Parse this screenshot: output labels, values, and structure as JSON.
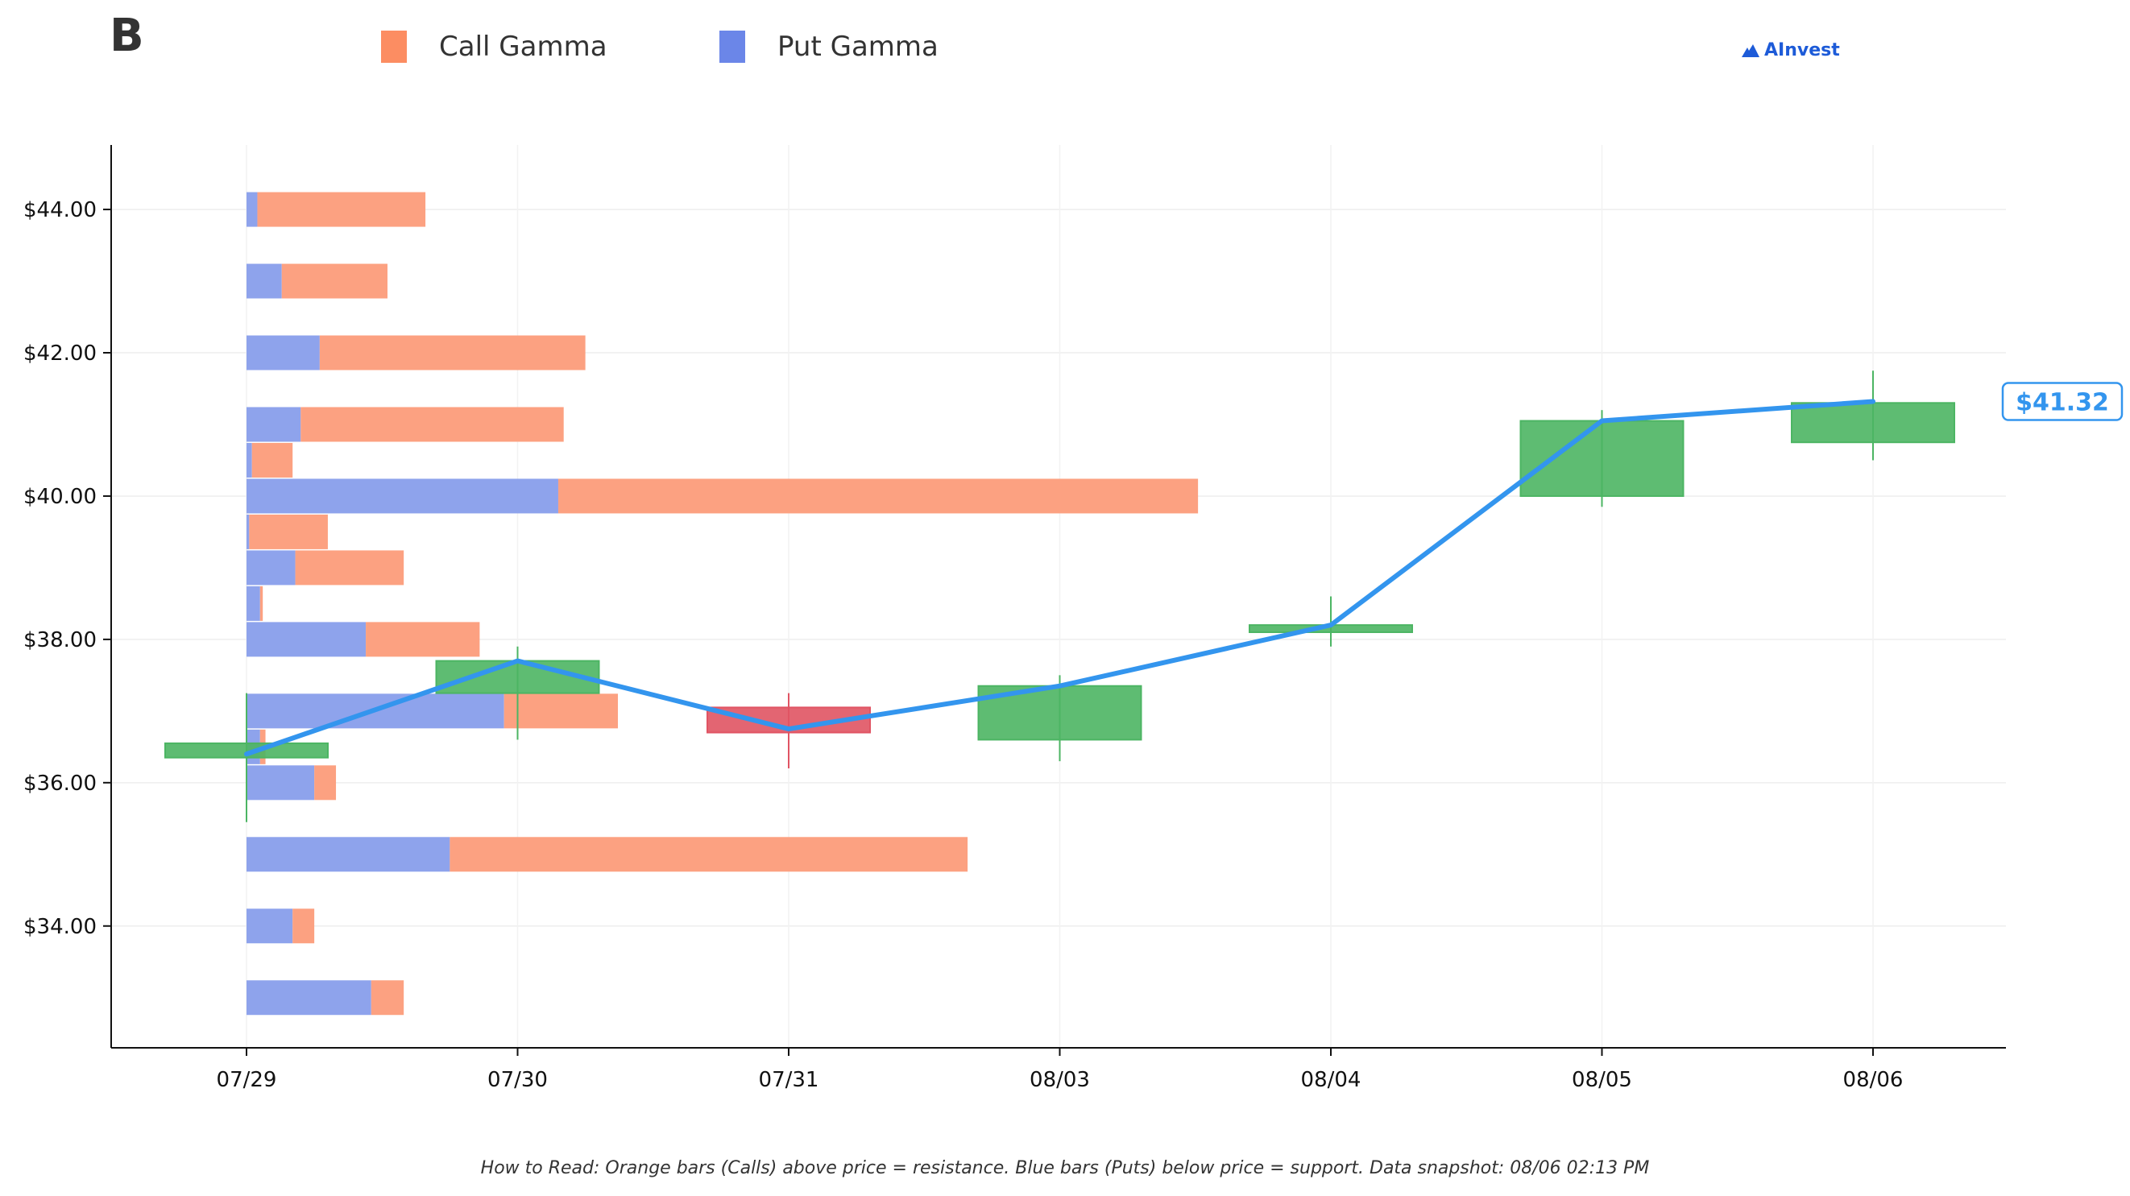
{
  "panel_label": "B",
  "legend": [
    {
      "label": "Call Gamma",
      "color": "#fc8d62"
    },
    {
      "label": "Put Gamma",
      "color": "#6b86e8"
    }
  ],
  "logo_text": "AInvest",
  "footnote": "How to Read: Orange bars (Calls) above price = resistance. Blue bars (Puts) below price = support. Data snapshot: 08/06 02:13 PM",
  "chart_data": {
    "type": "bar",
    "x_categories": [
      "07/29",
      "07/30",
      "07/31",
      "08/03",
      "08/04",
      "08/05",
      "08/06"
    ],
    "y_ticks": [
      "$34.00",
      "$36.00",
      "$38.00",
      "$40.00",
      "$42.00",
      "$44.00"
    ],
    "y_tick_values": [
      34,
      36,
      38,
      40,
      42,
      44
    ],
    "ylim": [
      32.3,
      44.9
    ],
    "grid": true,
    "legend_position": "top",
    "colors": {
      "call": "#fca181",
      "put": "#8ea3ec",
      "up": "#4cb563",
      "down": "#e05463",
      "price_line": "#3395ee"
    },
    "gamma_profile": {
      "unit_note": "horizontal bars measured in category units starting at 07/29",
      "strikes": [
        33,
        34,
        35,
        36,
        36.5,
        37,
        38,
        38.5,
        39,
        39.5,
        40,
        40.5,
        41,
        42,
        43,
        44
      ],
      "put_gamma": [
        0.46,
        0.17,
        0.75,
        0.25,
        0.05,
        0.95,
        0.44,
        0.05,
        0.18,
        0.01,
        1.15,
        0.02,
        0.2,
        0.27,
        0.13,
        0.04
      ],
      "call_gamma": [
        0.12,
        0.08,
        1.91,
        0.08,
        0.02,
        0.42,
        0.42,
        0.01,
        0.4,
        0.29,
        2.36,
        0.15,
        0.97,
        0.98,
        0.39,
        0.62
      ]
    },
    "candles": [
      {
        "x": "07/29",
        "open": 36.35,
        "close": 36.55,
        "high": 37.25,
        "low": 35.45
      },
      {
        "x": "07/30",
        "open": 37.25,
        "close": 37.7,
        "high": 37.9,
        "low": 36.6
      },
      {
        "x": "07/31",
        "open": 37.05,
        "close": 36.7,
        "high": 37.25,
        "low": 36.2
      },
      {
        "x": "08/03",
        "open": 36.6,
        "close": 37.35,
        "high": 37.5,
        "low": 36.3
      },
      {
        "x": "08/04",
        "open": 38.1,
        "close": 38.2,
        "high": 38.6,
        "low": 37.9
      },
      {
        "x": "08/05",
        "open": 40.0,
        "close": 41.05,
        "high": 41.2,
        "low": 39.85
      },
      {
        "x": "08/06",
        "open": 40.75,
        "close": 41.3,
        "high": 41.75,
        "low": 40.5
      }
    ],
    "price_line": [
      36.4,
      37.7,
      36.75,
      37.35,
      38.2,
      41.05,
      41.32
    ],
    "current_price_label": "$41.32"
  }
}
